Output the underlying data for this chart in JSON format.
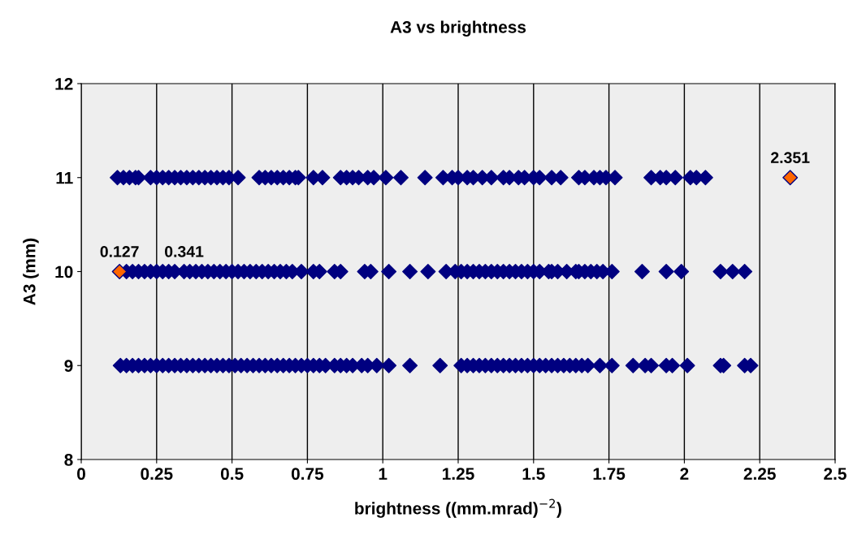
{
  "chart_data": {
    "type": "scatter",
    "title": "A3 vs brightness",
    "xlabel": "brightness ((mm.mrad)$^{−2}$)",
    "annotations": [
      {
        "text": "0.127",
        "x": 0.127,
        "y": 10
      },
      {
        "text": "0.341",
        "x": 0.341,
        "y": 10
      },
      {
        "text": "2.351",
        "x": 2.351,
        "y": 11
      }
    ],
    "ylabel": "A3 (mm)",
    "xlim": [
      0,
      2.5
    ],
    "xticks": [
      0,
      0.25,
      0.5,
      0.75,
      1,
      1.25,
      1.5,
      1.75,
      2,
      2.25,
      2.5
    ],
    "ylim": [
      8,
      12
    ],
    "yticks": [
      8,
      9,
      10,
      11,
      12
    ],
    "grid": "x",
    "marker": "diamond",
    "legend": false,
    "series": [
      {
        "color": "#000080",
        "x": [
          0.12,
          0.14,
          0.16,
          0.18,
          0.19,
          0.23,
          0.25,
          0.27,
          0.29,
          0.31,
          0.33,
          0.35,
          0.37,
          0.39,
          0.41,
          0.43,
          0.45,
          0.47,
          0.49,
          0.52,
          0.59,
          0.61,
          0.63,
          0.65,
          0.67,
          0.69,
          0.71,
          0.72,
          0.77,
          0.8,
          0.86,
          0.88,
          0.9,
          0.92,
          0.95,
          0.97,
          1.01,
          1.06,
          1.14,
          1.2,
          1.23,
          1.25,
          1.28,
          1.3,
          1.33,
          1.36,
          1.4,
          1.42,
          1.45,
          1.47,
          1.5,
          1.52,
          1.56,
          1.59,
          1.65,
          1.67,
          1.7,
          1.72,
          1.74,
          1.77,
          1.89,
          1.92,
          1.94,
          1.97,
          2.02,
          2.04,
          2.07
        ],
        "values": [
          11,
          11,
          11,
          11,
          11,
          11,
          11,
          11,
          11,
          11,
          11,
          11,
          11,
          11,
          11,
          11,
          11,
          11,
          11,
          11,
          11,
          11,
          11,
          11,
          11,
          11,
          11,
          11,
          11,
          11,
          11,
          11,
          11,
          11,
          11,
          11,
          11,
          11,
          11,
          11,
          11,
          11,
          11,
          11,
          11,
          11,
          11,
          11,
          11,
          11,
          11,
          11,
          11,
          11,
          11,
          11,
          11,
          11,
          11,
          11,
          11,
          11,
          11,
          11,
          11,
          11,
          11
        ]
      },
      {
        "color": "#000080",
        "x": [
          0.15,
          0.17,
          0.19,
          0.21,
          0.23,
          0.25,
          0.27,
          0.29,
          0.31,
          0.36,
          0.38,
          0.4,
          0.42,
          0.44,
          0.46,
          0.48,
          0.5,
          0.52,
          0.54,
          0.56,
          0.58,
          0.6,
          0.62,
          0.64,
          0.66,
          0.68,
          0.7,
          0.73,
          0.77,
          0.79,
          0.84,
          0.86,
          0.94,
          0.96,
          1.02,
          1.09,
          1.15,
          1.21,
          1.24,
          1.26,
          1.28,
          1.3,
          1.32,
          1.34,
          1.36,
          1.38,
          1.4,
          1.42,
          1.44,
          1.46,
          1.48,
          1.5,
          1.52,
          1.55,
          1.56,
          1.58,
          1.61,
          1.64,
          1.65,
          1.67,
          1.69,
          1.71,
          1.73,
          1.76,
          1.86,
          1.94,
          1.99,
          2.12,
          2.16,
          2.2
        ],
        "values": [
          10,
          10,
          10,
          10,
          10,
          10,
          10,
          10,
          10,
          10,
          10,
          10,
          10,
          10,
          10,
          10,
          10,
          10,
          10,
          10,
          10,
          10,
          10,
          10,
          10,
          10,
          10,
          10,
          10,
          10,
          10,
          10,
          10,
          10,
          10,
          10,
          10,
          10,
          10,
          10,
          10,
          10,
          10,
          10,
          10,
          10,
          10,
          10,
          10,
          10,
          10,
          10,
          10,
          10,
          10,
          10,
          10,
          10,
          10,
          10,
          10,
          10,
          10,
          10,
          10,
          10,
          10,
          10,
          10,
          10
        ]
      },
      {
        "color": "#000080",
        "x": [
          0.13,
          0.15,
          0.17,
          0.19,
          0.21,
          0.23,
          0.25,
          0.27,
          0.29,
          0.31,
          0.33,
          0.35,
          0.37,
          0.39,
          0.41,
          0.43,
          0.45,
          0.47,
          0.49,
          0.51,
          0.53,
          0.55,
          0.57,
          0.59,
          0.61,
          0.63,
          0.65,
          0.67,
          0.69,
          0.71,
          0.73,
          0.75,
          0.77,
          0.79,
          0.81,
          0.84,
          0.86,
          0.88,
          0.9,
          0.93,
          0.95,
          0.98,
          1.02,
          1.09,
          1.19,
          1.26,
          1.28,
          1.3,
          1.32,
          1.34,
          1.36,
          1.38,
          1.4,
          1.42,
          1.44,
          1.46,
          1.48,
          1.5,
          1.52,
          1.54,
          1.56,
          1.58,
          1.6,
          1.62,
          1.64,
          1.66,
          1.68,
          1.72,
          1.76,
          1.83,
          1.87,
          1.89,
          1.94,
          1.96,
          2.01,
          2.12,
          2.13,
          2.2,
          2.22
        ],
        "values": [
          9,
          9,
          9,
          9,
          9,
          9,
          9,
          9,
          9,
          9,
          9,
          9,
          9,
          9,
          9,
          9,
          9,
          9,
          9,
          9,
          9,
          9,
          9,
          9,
          9,
          9,
          9,
          9,
          9,
          9,
          9,
          9,
          9,
          9,
          9,
          9,
          9,
          9,
          9,
          9,
          9,
          9,
          9,
          9,
          9,
          9,
          9,
          9,
          9,
          9,
          9,
          9,
          9,
          9,
          9,
          9,
          9,
          9,
          9,
          9,
          9,
          9,
          9,
          9,
          9,
          9,
          9,
          9,
          9,
          9,
          9,
          9,
          9,
          9,
          9,
          9,
          9,
          9,
          9
        ]
      },
      {
        "color": "#ff6600",
        "x": [
          0.127,
          2.351
        ],
        "values": [
          10,
          11
        ]
      },
      {
        "color": "#000080",
        "x": [
          0.341
        ],
        "values": [
          10
        ]
      }
    ]
  }
}
